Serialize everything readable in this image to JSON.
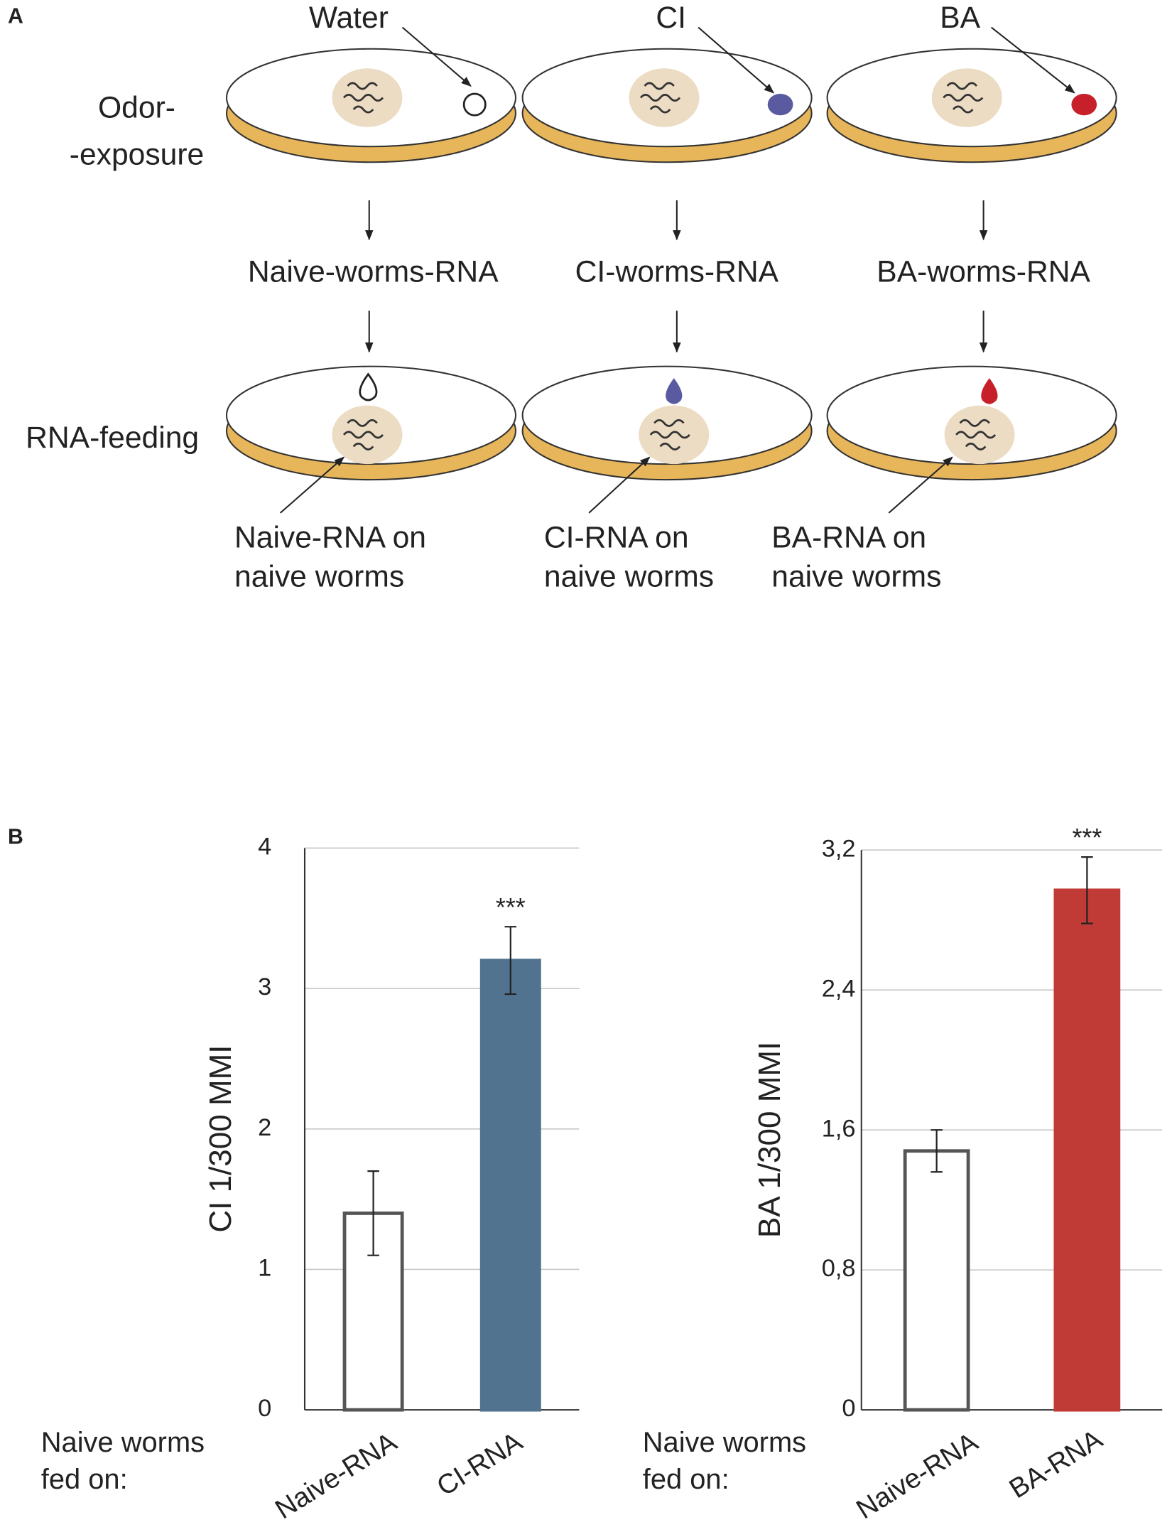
{
  "figure": {
    "panel_labels": [
      "A",
      "B"
    ],
    "diagram": {
      "odor_exposure_label": [
        "Odor-",
        "-exposure"
      ],
      "rna_feeding_label": "RNA-feeding",
      "odors": [
        "Water",
        "CI",
        "BA"
      ],
      "rna_samples": [
        "Naive-worms-RNA",
        "CI-worms-RNA",
        "BA-worms-RNA"
      ],
      "feeding_labels": [
        [
          "Naive-RNA on",
          "naive worms"
        ],
        [
          "CI-RNA on",
          "naive worms"
        ],
        [
          "BA-RNA on",
          "naive worms"
        ]
      ]
    }
  },
  "chart_data": [
    {
      "type": "bar",
      "ylabel": "CI 1/300 MMI",
      "x_label": [
        "Naive worms",
        "fed on:"
      ],
      "categories": [
        "Naive-RNA",
        "CI-RNA"
      ],
      "values": [
        1.4,
        3.2
      ],
      "errors": [
        0.3,
        0.24
      ],
      "colors": [
        "#ffffff",
        "#52738f"
      ],
      "edgecolors": [
        "#555555",
        "#52738f"
      ],
      "annotation": "***",
      "ylim": [
        0,
        4
      ],
      "yticks": [
        0,
        1,
        2,
        3,
        4
      ],
      "grid": true
    },
    {
      "type": "bar",
      "ylabel": "BA 1/300 MMI",
      "x_label": [
        "Naive worms",
        "fed on:"
      ],
      "categories": [
        "Naive-RNA",
        "BA-RNA"
      ],
      "values": [
        1.48,
        2.97
      ],
      "errors": [
        0.12,
        0.19
      ],
      "colors": [
        "#ffffff",
        "#c03a36"
      ],
      "edgecolors": [
        "#555555",
        "#c03a36"
      ],
      "annotation": "***",
      "ylim": [
        0,
        3.2
      ],
      "yticks": [
        0,
        {
          "value": 0.8,
          "label": "0,8"
        },
        {
          "value": 1.6,
          "label": "1,6"
        },
        {
          "value": 2.4,
          "label": "2,4"
        },
        {
          "value": 3.2,
          "label": "3,2"
        }
      ],
      "grid": true
    }
  ]
}
